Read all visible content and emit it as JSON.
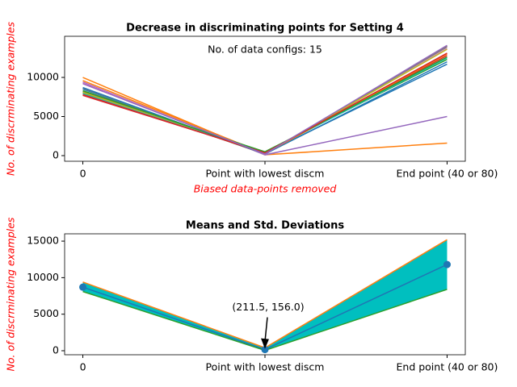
{
  "chart_data": [
    {
      "type": "line",
      "title": "Decrease in discriminating points for Setting 4",
      "annotation": "No. of data configs: 15",
      "xlabel": "Biased data-points removed",
      "ylabel": "No. of discrminating examples",
      "label_color": "#ff0000",
      "categories": [
        "0",
        "Point with lowest discm",
        "End point (40 or 80)"
      ],
      "ylim": [
        -720,
        15260
      ],
      "yticks": [
        0,
        5000,
        10000
      ],
      "series": [
        {
          "color": "#1f77b4",
          "values": [
            8500,
            300,
            11700
          ]
        },
        {
          "color": "#ff7f0e",
          "values": [
            10000,
            100,
            1600
          ]
        },
        {
          "color": "#2ca02c",
          "values": [
            8000,
            500,
            12300
          ]
        },
        {
          "color": "#d62728",
          "values": [
            7700,
            400,
            12800
          ]
        },
        {
          "color": "#9467bd",
          "values": [
            9400,
            100,
            5000
          ]
        },
        {
          "color": "#8c564b",
          "values": [
            8200,
            200,
            14000
          ]
        },
        {
          "color": "#e377c2",
          "values": [
            9300,
            150,
            13700
          ]
        },
        {
          "color": "#7f7f7f",
          "values": [
            8600,
            250,
            13900
          ]
        },
        {
          "color": "#bcbd22",
          "values": [
            8100,
            300,
            13600
          ]
        },
        {
          "color": "#17becf",
          "values": [
            7900,
            350,
            12500
          ]
        },
        {
          "color": "#1f77b4",
          "values": [
            8700,
            200,
            12000
          ]
        },
        {
          "color": "#ff7f0e",
          "values": [
            9600,
            250,
            13000
          ]
        },
        {
          "color": "#2ca02c",
          "values": [
            8300,
            450,
            12600
          ]
        },
        {
          "color": "#d62728",
          "values": [
            7800,
            350,
            13100
          ]
        },
        {
          "color": "#9467bd",
          "values": [
            9200,
            200,
            14100
          ]
        }
      ]
    },
    {
      "type": "line",
      "title": "Means and Std. Deviations",
      "ylabel": "No. of discrminating examples",
      "label_color": "#ff0000",
      "point_annotation": "(211.5, 156.0)",
      "categories": [
        "0",
        "Point with lowest discm",
        "End point (40 or 80)"
      ],
      "ylim": [
        -550,
        16000
      ],
      "yticks": [
        0,
        5000,
        10000,
        15000
      ],
      "fill_color": "#00bfbf",
      "series": [
        {
          "color": "#1f77b4",
          "values": [
            8700,
            156,
            11800
          ],
          "markers": true
        },
        {
          "color": "#ff7f0e",
          "values": [
            9400,
            400,
            15200
          ]
        },
        {
          "color": "#2ca02c",
          "values": [
            8100,
            50,
            8400
          ]
        }
      ]
    }
  ]
}
